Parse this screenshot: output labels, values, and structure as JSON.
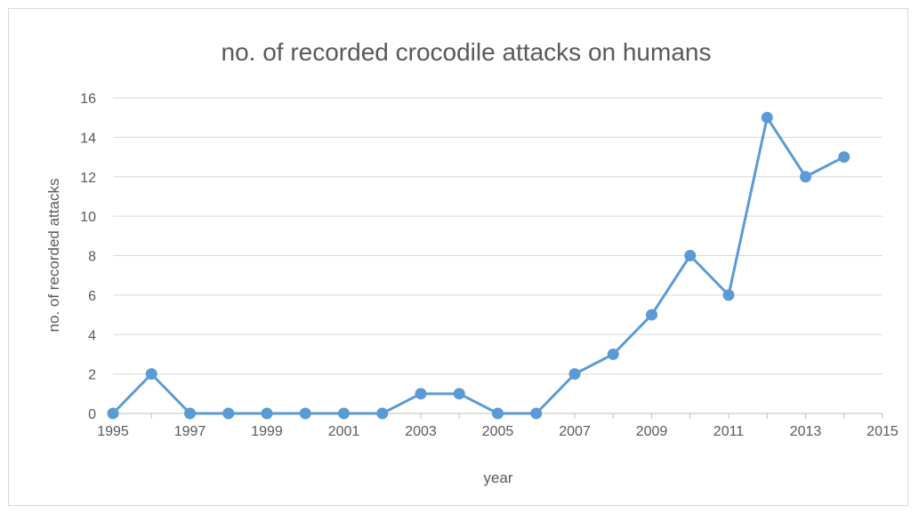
{
  "chart_data": {
    "type": "line",
    "title": "no. of recorded crocodile attacks on humans",
    "xlabel": "year",
    "ylabel": "no. of recorded attacks",
    "xlim": [
      1995,
      2015
    ],
    "ylim": [
      0,
      16
    ],
    "x_ticks": [
      1995,
      1997,
      1999,
      2001,
      2003,
      2005,
      2007,
      2009,
      2011,
      2013,
      2015
    ],
    "y_ticks": [
      0,
      2,
      4,
      6,
      8,
      10,
      12,
      14,
      16
    ],
    "grid": "horizontal",
    "legend": "none",
    "series": [
      {
        "color": "#5b9bd5",
        "x": [
          1995,
          1996,
          1997,
          1998,
          1999,
          2000,
          2001,
          2002,
          2003,
          2004,
          2005,
          2006,
          2007,
          2008,
          2009,
          2010,
          2011,
          2012,
          2013,
          2014
        ],
        "y": [
          0,
          2,
          0,
          0,
          0,
          0,
          0,
          0,
          1,
          1,
          0,
          0,
          2,
          3,
          5,
          8,
          6,
          15,
          12,
          13
        ]
      }
    ]
  }
}
